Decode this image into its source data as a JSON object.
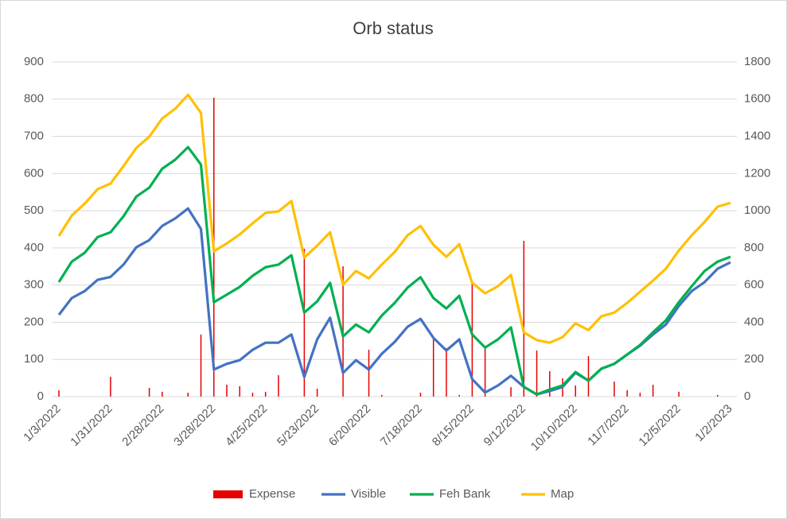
{
  "chart_data": {
    "type": "combo",
    "title": "Orb status",
    "categories": [
      "1/3/2022",
      null,
      null,
      null,
      "1/31/2022",
      null,
      null,
      null,
      "2/28/2022",
      null,
      null,
      null,
      "3/28/2022",
      null,
      null,
      null,
      "4/25/2022",
      null,
      null,
      null,
      "5/23/2022",
      null,
      null,
      null,
      "6/20/2022",
      null,
      null,
      null,
      "7/18/2022",
      null,
      null,
      null,
      "8/15/2022",
      null,
      null,
      null,
      "9/12/2022",
      null,
      null,
      null,
      "10/10/2022",
      null,
      null,
      null,
      "11/7/2022",
      null,
      null,
      null,
      "12/5/2022",
      null,
      null,
      null,
      "1/2/2023"
    ],
    "ylim": [
      0,
      900
    ],
    "yticks": [
      0,
      100,
      200,
      300,
      400,
      500,
      600,
      700,
      800,
      900
    ],
    "y2lim": [
      0,
      1800
    ],
    "y2ticks": [
      0,
      200,
      400,
      600,
      800,
      1000,
      1200,
      1400,
      1600,
      1800
    ],
    "grid": true,
    "legend": "bottom",
    "series": [
      {
        "name": "Expense",
        "type": "bar",
        "axis": "y2",
        "color": "#e60000",
        "values": [
          34,
          0,
          0,
          0,
          107,
          0,
          0,
          47,
          26,
          0,
          21,
          334,
          1608,
          64,
          56,
          21,
          26,
          115,
          0,
          795,
          43,
          0,
          701,
          0,
          252,
          9,
          0,
          0,
          21,
          308,
          261,
          9,
          616,
          261,
          0,
          51,
          838,
          248,
          137,
          98,
          60,
          218,
          0,
          81,
          34,
          21,
          64,
          0,
          26,
          0,
          0,
          9,
          0
        ]
      },
      {
        "name": "Visible",
        "type": "line",
        "color": "#4472c4",
        "values": [
          220,
          265,
          284,
          314,
          322,
          355,
          402,
          421,
          459,
          479,
          506,
          451,
          73,
          88,
          98,
          126,
          145,
          145,
          167,
          53,
          154,
          212,
          64,
          98,
          73,
          115,
          147,
          188,
          209,
          158,
          124,
          154,
          47,
          11,
          30,
          56,
          26,
          6,
          15,
          26,
          64,
          43,
          75,
          88,
          113,
          137,
          167,
          194,
          244,
          284,
          308,
          344,
          361
        ]
      },
      {
        "name": "Feh Bank",
        "type": "line",
        "color": "#00b050",
        "values": [
          308,
          363,
          387,
          429,
          442,
          485,
          538,
          562,
          613,
          637,
          671,
          624,
          254,
          274,
          295,
          325,
          348,
          355,
          380,
          226,
          256,
          306,
          162,
          194,
          173,
          218,
          252,
          293,
          321,
          265,
          237,
          271,
          167,
          132,
          154,
          186,
          26,
          6,
          19,
          30,
          66,
          43,
          75,
          88,
          113,
          139,
          173,
          205,
          254,
          297,
          338,
          363,
          376
        ]
      },
      {
        "name": "Map",
        "type": "line",
        "color": "#ffc000",
        "values": [
          432,
          487,
          519,
          558,
          573,
          620,
          669,
          699,
          748,
          774,
          812,
          763,
          391,
          412,
          436,
          466,
          494,
          498,
          526,
          374,
          406,
          442,
          301,
          338,
          318,
          355,
          389,
          434,
          459,
          408,
          376,
          410,
          306,
          278,
          297,
          327,
          173,
          152,
          145,
          160,
          197,
          179,
          216,
          226,
          252,
          282,
          312,
          344,
          393,
          434,
          470,
          511,
          521
        ]
      }
    ]
  }
}
